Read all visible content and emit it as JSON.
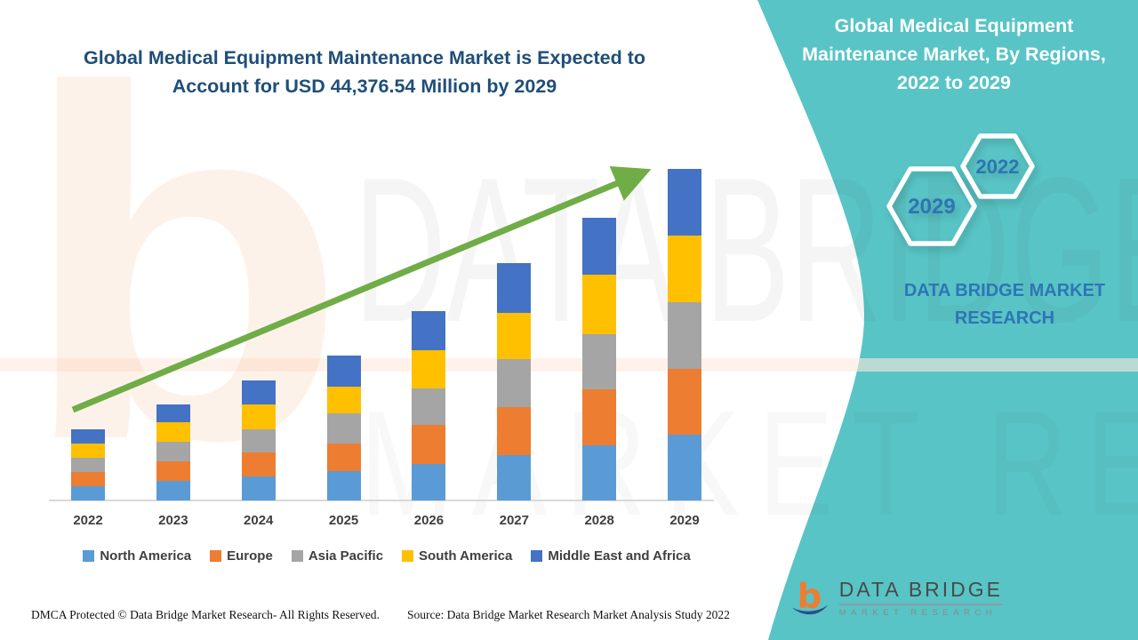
{
  "page": {
    "left_title": "Global Medical Equipment Maintenance Market is Expected to Account for USD 44,376.54 Million by 2029",
    "footer_dmca": "DMCA Protected © Data Bridge Market Research- All Rights Reserved.",
    "footer_source": "Source: Data Bridge Market Research Market Analysis Study 2022",
    "title_color": "#1F4E79"
  },
  "panel": {
    "title": "Global Medical Equipment Maintenance Market, By Regions, 2022 to 2029",
    "background_color": "#58C4C5",
    "hexagons": [
      {
        "label": "2029"
      },
      {
        "label": "2022"
      }
    ],
    "brand_text": "DATA BRIDGE MARKET RESEARCH",
    "accent_text_color": "#2E74B5"
  },
  "logo": {
    "title": "DATA BRIDGE",
    "subtitle": "MARKET RESEARCH",
    "mark_letter": "b",
    "mark_orange": "#ED7D31",
    "mark_navy": "#2C4E8A"
  },
  "watermarks": {
    "big_text_1": "DATA BRIDGE",
    "big_text_2": "MARKET RESEARCH",
    "letter": "b"
  },
  "chart_data": {
    "type": "bar",
    "stacked": true,
    "title": "Global Medical Equipment Maintenance Market, By Regions, 2022 to 2029",
    "categories": [
      "2022",
      "2023",
      "2024",
      "2025",
      "2026",
      "2027",
      "2028",
      "2029"
    ],
    "series": [
      {
        "name": "North America",
        "color": "#5B9BD5",
        "values": [
          16,
          22,
          27,
          33,
          41,
          51,
          62,
          74
        ]
      },
      {
        "name": "Europe",
        "color": "#ED7D31",
        "values": [
          16,
          22,
          27,
          31,
          44,
          54,
          63,
          74
        ]
      },
      {
        "name": "Asia Pacific",
        "color": "#A5A5A5",
        "values": [
          16,
          22,
          26,
          34,
          41,
          54,
          62,
          75
        ]
      },
      {
        "name": "South America",
        "color": "#FFC000",
        "values": [
          16,
          22,
          28,
          30,
          43,
          52,
          67,
          75
        ]
      },
      {
        "name": "Middle East and Africa",
        "color": "#4472C4",
        "values": [
          16,
          20,
          27,
          35,
          44,
          56,
          64,
          75
        ]
      }
    ],
    "units": "relative height (no value axis shown in figure)",
    "highlight_value": "USD 44,376.54 Million by 2029",
    "xlabel": "",
    "ylabel": "",
    "grid": false,
    "legend_position": "bottom",
    "trend_arrow": {
      "from": [
        82,
        461
      ],
      "to": [
        726,
        193
      ],
      "color": "#70AD47"
    }
  }
}
